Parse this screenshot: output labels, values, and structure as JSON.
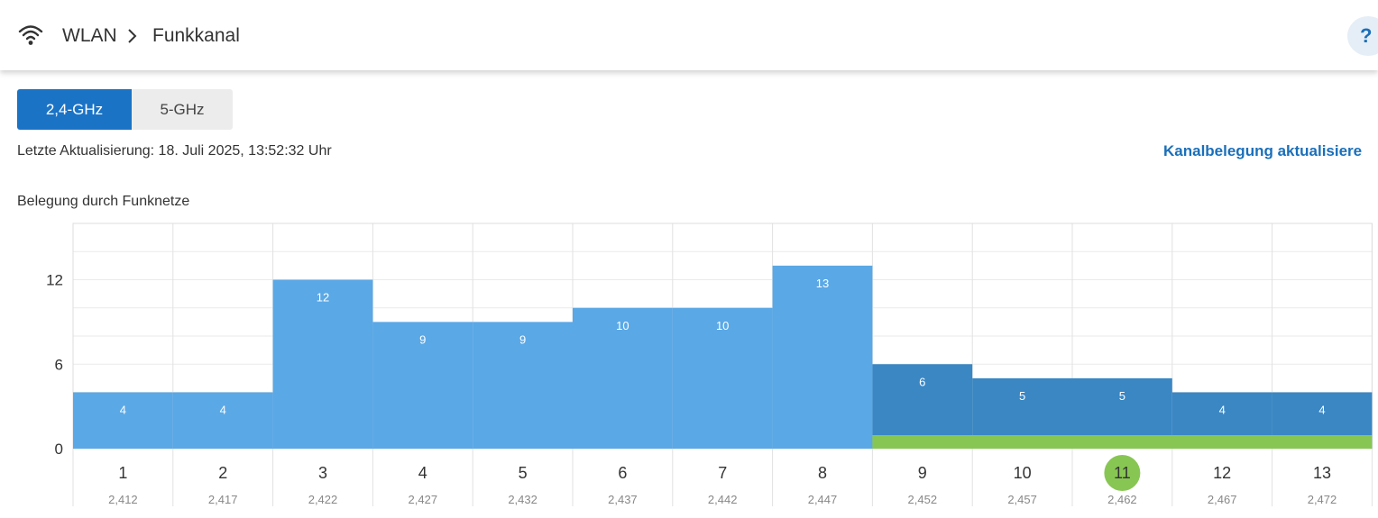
{
  "header": {
    "breadcrumb": [
      "WLAN",
      "Funkkanal"
    ],
    "help_label": "?",
    "icons": {
      "wifi": "wifi-icon",
      "separator": "chevron-right-icon"
    }
  },
  "tabs": [
    {
      "label": "2,4-GHz",
      "active": true
    },
    {
      "label": "5-GHz",
      "active": false
    }
  ],
  "status": {
    "last_update": "Letzte Aktualisierung: 18. Juli 2025, 13:52:32 Uhr",
    "refresh_link": "Kanalbelegung aktualisiere"
  },
  "section_title": "Belegung durch Funknetze",
  "colors": {
    "accent": "#1b73c6",
    "bar_light": "#5aa8e6",
    "bar_dark": "#3a87c4",
    "own_channel": "#88c653",
    "link": "#1a6fba"
  },
  "chart_data": {
    "type": "bar",
    "title": "Belegung durch Funknetze",
    "categories": [
      "1",
      "2",
      "3",
      "4",
      "5",
      "6",
      "7",
      "8",
      "9",
      "10",
      "11",
      "12",
      "13"
    ],
    "frequencies": [
      "2,412",
      "2,417",
      "2,422",
      "2,427",
      "2,432",
      "2,437",
      "2,442",
      "2,447",
      "2,452",
      "2,457",
      "2,462",
      "2,467",
      "2,472"
    ],
    "values": [
      4,
      4,
      12,
      9,
      9,
      10,
      10,
      13,
      6,
      5,
      5,
      4,
      4
    ],
    "own_channel": "11",
    "own_channel_band": [
      "9",
      "13"
    ],
    "ylim": [
      0,
      16
    ],
    "yticks": [
      0,
      6,
      12
    ],
    "grid": true
  }
}
